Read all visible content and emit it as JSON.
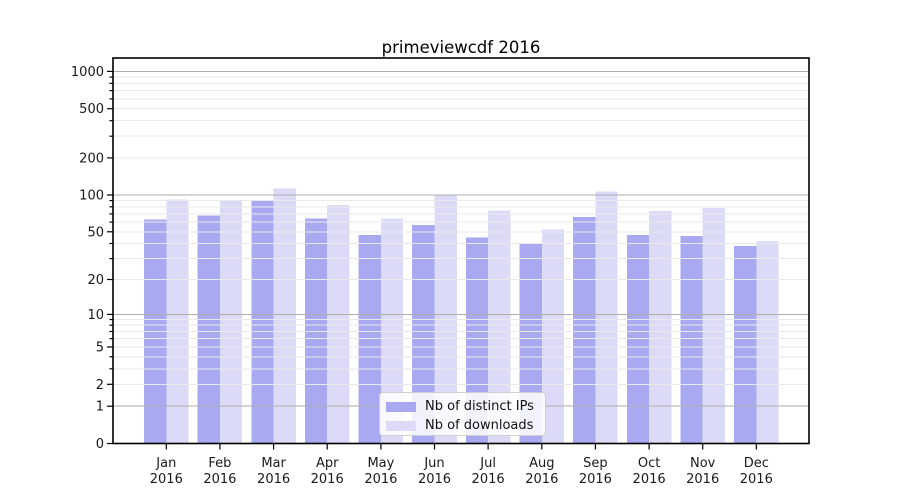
{
  "title": "primeviewcdf 2016",
  "chart_data": {
    "type": "bar",
    "title": "primeviewcdf 2016",
    "categories": [
      "Jan",
      "Feb",
      "Mar",
      "Apr",
      "May",
      "Jun",
      "Jul",
      "Aug",
      "Sep",
      "Oct",
      "Nov",
      "Dec"
    ],
    "year_label": "2016",
    "series": [
      {
        "name": "Nb of distinct IPs",
        "color": "#a9a9f2",
        "values": [
          63,
          68,
          90,
          64,
          47,
          57,
          45,
          40,
          66,
          47,
          46,
          38
        ]
      },
      {
        "name": "Nb of downloads",
        "color": "#dbdbf8",
        "values": [
          92,
          91,
          113,
          83,
          64,
          101,
          75,
          52,
          107,
          74,
          78,
          42
        ]
      }
    ],
    "yscale": "log1p",
    "ytick_values": [
      0,
      1,
      2,
      5,
      10,
      20,
      50,
      100,
      200,
      500,
      1000
    ],
    "ytick_labels": [
      "0",
      "1",
      "2",
      "5",
      "10",
      "20",
      "50",
      "100",
      "200",
      "500",
      "1000"
    ],
    "ylim": [
      0,
      1290
    ],
    "grid": "both",
    "legend_position": "lower-center",
    "colors": {
      "major_grid": "#aeaeae",
      "minor_grid": "#e9e9e9",
      "axis": "#000000",
      "background": "#ffffff"
    }
  }
}
